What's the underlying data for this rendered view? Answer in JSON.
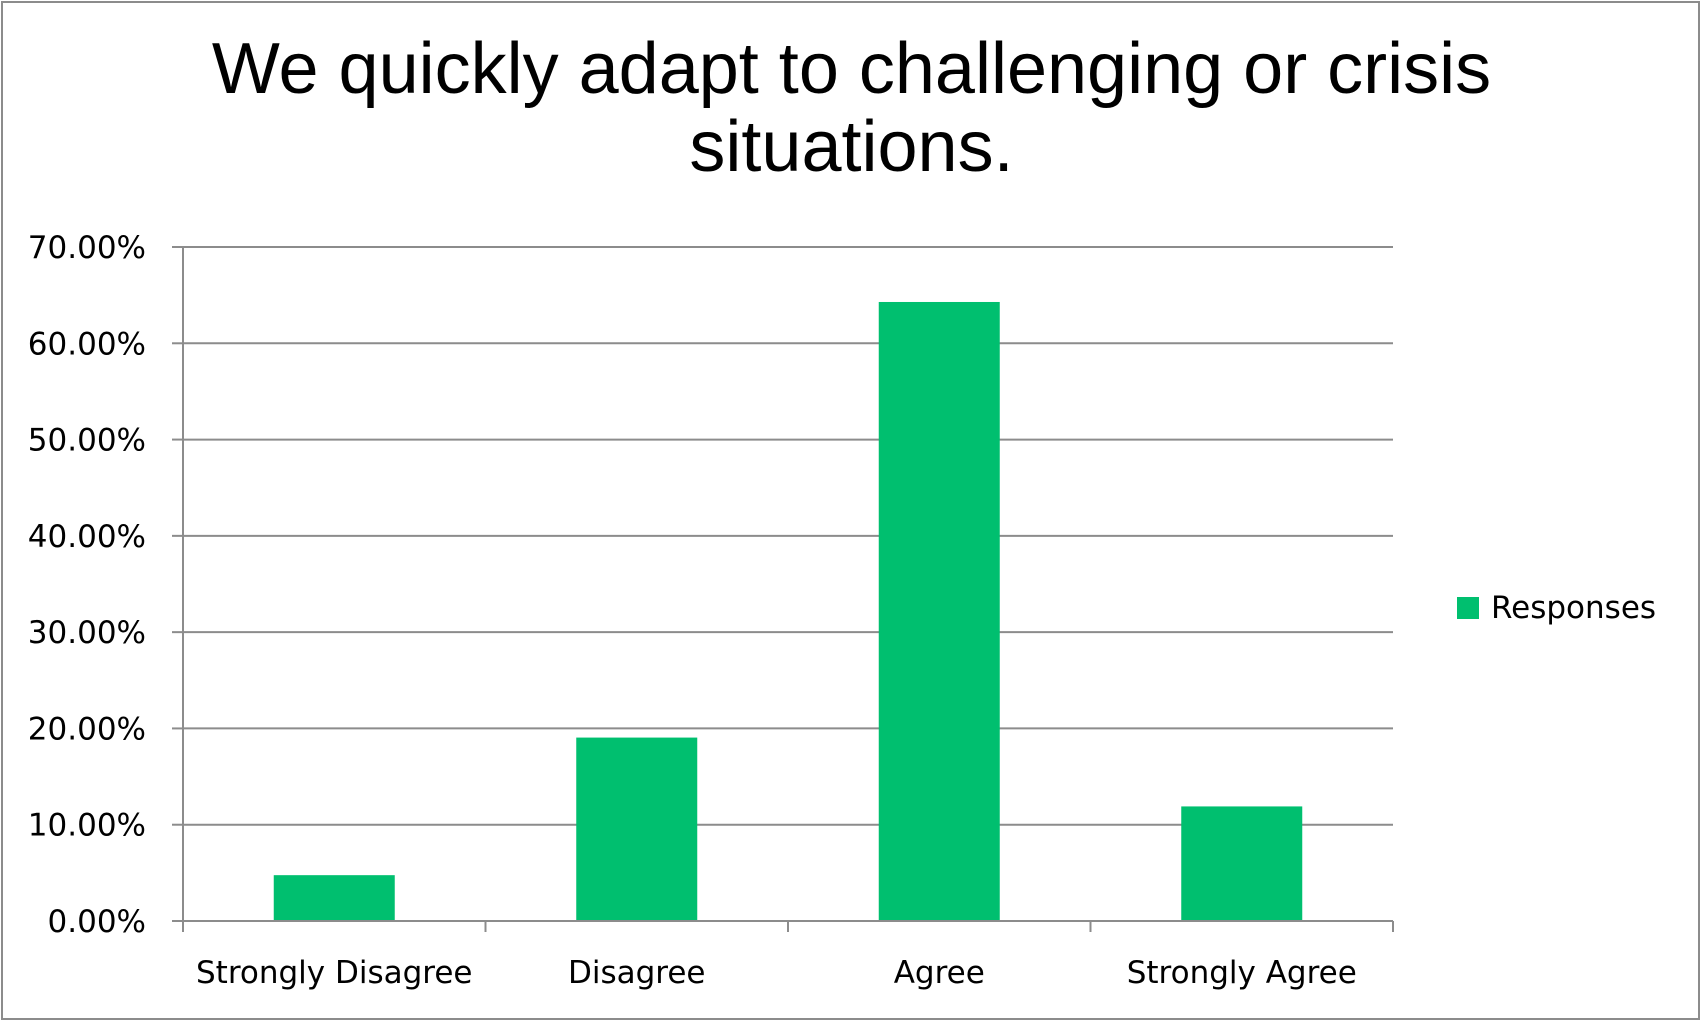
{
  "chart_data": {
    "type": "bar",
    "title": "We quickly adapt to challenging or crisis situations.",
    "categories": [
      "Strongly Disagree",
      "Disagree",
      "Agree",
      "Strongly Agree"
    ],
    "series": [
      {
        "name": "Responses",
        "values": [
          4.76,
          19.05,
          64.29,
          11.9
        ],
        "color": "#00bf6f"
      }
    ],
    "xlabel": "",
    "ylabel": "",
    "ylim": [
      0,
      70
    ],
    "yticks": [
      "0.00%",
      "10.00%",
      "20.00%",
      "30.00%",
      "40.00%",
      "50.00%",
      "60.00%",
      "70.00%"
    ],
    "grid": true,
    "legend_position": "right"
  },
  "colors": {
    "gridline": "#8c8c8c",
    "axis": "#8c8c8c",
    "frame": "#8c8c8c"
  }
}
